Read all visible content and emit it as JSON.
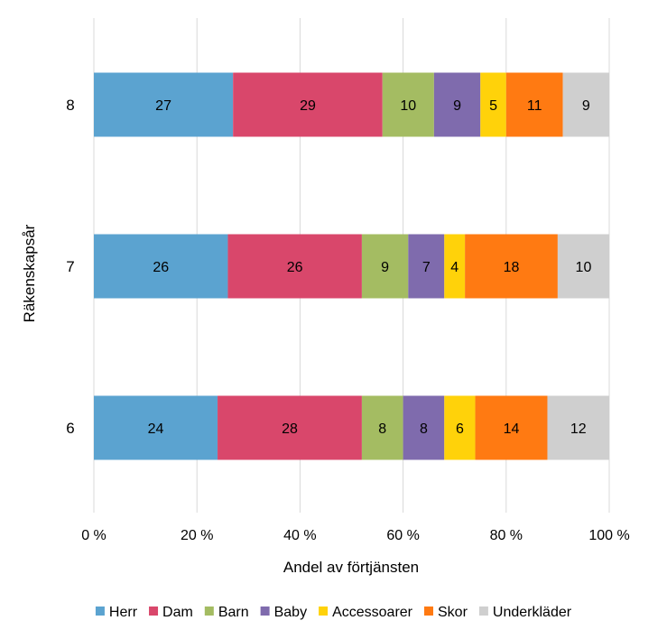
{
  "chart_data": {
    "type": "bar",
    "orientation": "horizontal",
    "stacked": "percent",
    "title": "",
    "xlabel": "Andel av förtjänsten",
    "ylabel": "Räkenskapsår",
    "categories": [
      "6",
      "7",
      "8"
    ],
    "x_ticks": [
      "0 %",
      "20 %",
      "40 %",
      "60 %",
      "80 %",
      "100 %"
    ],
    "xlim": [
      0,
      100
    ],
    "grid": "vertical",
    "legend_position": "bottom",
    "series": [
      {
        "name": "Herr",
        "color": "#5ba3d0",
        "values": [
          24,
          26,
          27
        ]
      },
      {
        "name": "Dam",
        "color": "#d9476b",
        "values": [
          28,
          26,
          29
        ]
      },
      {
        "name": "Barn",
        "color": "#a4bc62",
        "values": [
          8,
          9,
          10
        ]
      },
      {
        "name": "Baby",
        "color": "#7f6bad",
        "values": [
          8,
          7,
          9
        ]
      },
      {
        "name": "Accessoarer",
        "color": "#ffd20a",
        "values": [
          6,
          4,
          5
        ]
      },
      {
        "name": "Skor",
        "color": "#ff7a12",
        "values": [
          14,
          18,
          11
        ]
      },
      {
        "name": "Underkläder",
        "color": "#cfcfcf",
        "values": [
          12,
          10,
          9
        ]
      }
    ]
  }
}
